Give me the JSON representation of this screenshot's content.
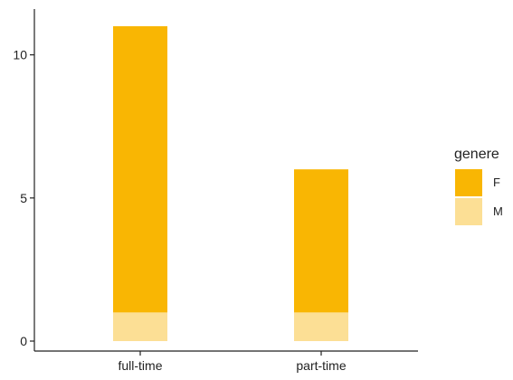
{
  "chart_data": {
    "type": "bar",
    "stacked": true,
    "categories": [
      "full-time",
      "part-time"
    ],
    "series": [
      {
        "name": "M",
        "values": [
          1,
          1
        ],
        "color": "#FCDF95"
      },
      {
        "name": "F",
        "values": [
          10,
          5
        ],
        "color": "#F9B603"
      }
    ],
    "ylim": [
      0,
      11.6
    ],
    "yticks": [
      0,
      5,
      10
    ],
    "ytick_labels": [
      "0",
      "5",
      "10"
    ],
    "legend": {
      "title": "genere",
      "placement": "right",
      "entries": [
        {
          "label": "F",
          "color": "#F9B603"
        },
        {
          "label": "M",
          "color": "#FCDF95"
        }
      ]
    },
    "grid": false
  }
}
